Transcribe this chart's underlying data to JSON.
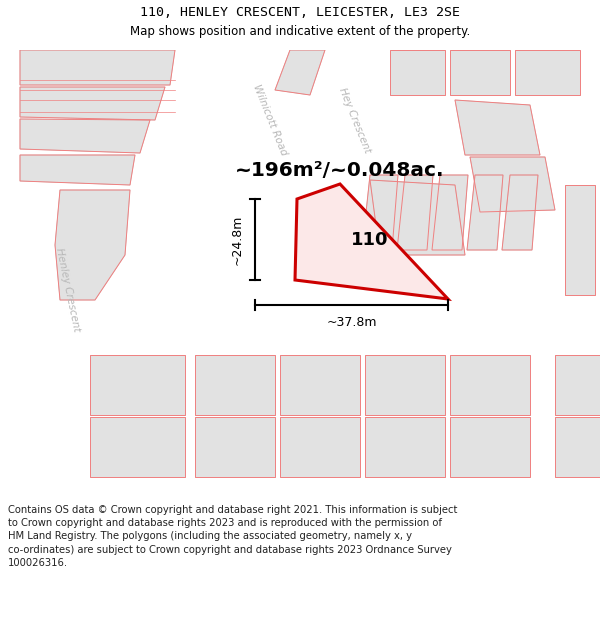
{
  "title": "110, HENLEY CRESCENT, LEICESTER, LE3 2SE",
  "subtitle": "Map shows position and indicative extent of the property.",
  "area_label": "~196m²/~0.048ac.",
  "property_number": "110",
  "dim_height": "~24.8m",
  "dim_width": "~37.8m",
  "copyright_text": "Contains OS data © Crown copyright and database right 2021. This information is subject to Crown copyright and database rights 2023 and is reproduced with the permission of HM Land Registry. The polygons (including the associated geometry, namely x, y co-ordinates) are subject to Crown copyright and database rights 2023 Ordnance Survey 100026316.",
  "bg_color": "#f5f5f5",
  "map_bg": "#f0f0f0",
  "road_white": "#ffffff",
  "block_fill": "#e2e2e2",
  "block_edge": "#c8c8c8",
  "salmon": "#f08080",
  "red": "#cc0000",
  "label_gray": "#b0b0b0",
  "title_size": 9,
  "subtitle_size": 8
}
